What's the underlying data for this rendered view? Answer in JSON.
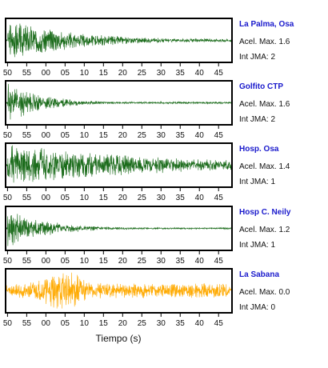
{
  "chart_data": {
    "type": "line",
    "description_units": "seismogram traces, time axis labels in seconds (minute wraps)",
    "x_tick_labels": [
      "50",
      "55",
      "00",
      "05",
      "10",
      "15",
      "20",
      "25",
      "30",
      "35",
      "40",
      "45"
    ],
    "xlabel": "Tiempo (s)",
    "x_range_seconds": [
      -10.5,
      48.5
    ],
    "y_range": [
      -1,
      1
    ],
    "grid": false,
    "panels": [
      {
        "station": "La Palma, Osa",
        "acel_label": "Acel. Max. 1.6",
        "int_label": "Int JMA: 2",
        "color": "#1a6b1a",
        "onset": -10,
        "decay": 18,
        "noise": 0.08,
        "seed": 3
      },
      {
        "station": "Golfito CTP",
        "acel_label": "Acel. Max. 1.6",
        "int_label": "Int JMA: 2",
        "color": "#1a6b1a",
        "onset": -10,
        "decay": 9,
        "noise": 0.05,
        "seed": 11
      },
      {
        "station": "Hosp. Osa",
        "acel_label": "Acel. Max. 1.4",
        "int_label": "Int JMA: 1",
        "color": "#1a6b1a",
        "onset": -10,
        "decay": 40,
        "noise": 0.25,
        "seed": 27
      },
      {
        "station": "Hosp C. Neily",
        "acel_label": "Acel. Max. 1.2",
        "int_label": "Int JMA: 1",
        "color": "#1a6b1a",
        "onset": -10,
        "decay": 10,
        "noise": 0.04,
        "seed": 41
      },
      {
        "station": "La Sabana",
        "acel_label": "Acel. Max. 0.0",
        "int_label": "Int JMA: 0",
        "color": "#ffaa00",
        "onset": -10,
        "decay": 0,
        "noise": 0.35,
        "seed": 59
      }
    ]
  }
}
